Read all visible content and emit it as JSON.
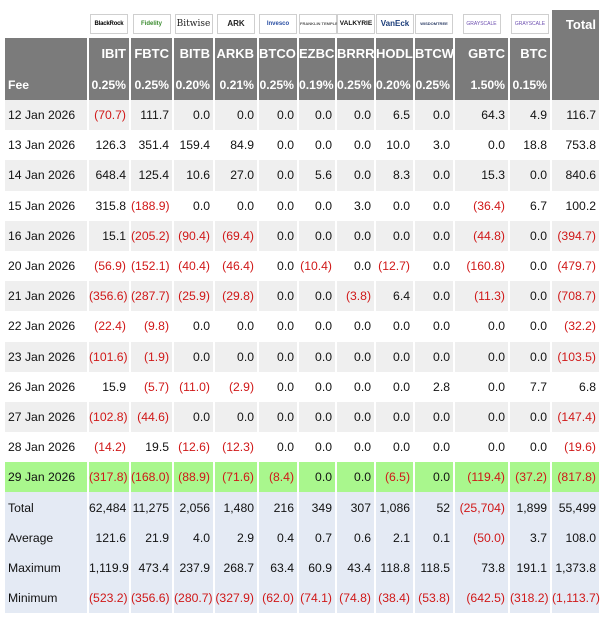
{
  "logos": [
    {
      "text": "BlackRock",
      "icon": "blackrock-logo"
    },
    {
      "text": "Fidelity",
      "icon": "fidelity-logo"
    },
    {
      "text": "Bitwise",
      "icon": "bitwise-logo"
    },
    {
      "text": "ARK",
      "icon": "ark-logo"
    },
    {
      "text": "Invesco",
      "icon": "invesco-logo"
    },
    {
      "text": "FRANKLIN TEMPLETON",
      "icon": "franklin-logo"
    },
    {
      "text": "VALKYRIE",
      "icon": "valkyrie-logo"
    },
    {
      "text": "VanEck",
      "icon": "vaneck-logo"
    },
    {
      "text": "WISDOMTREE",
      "icon": "wisdomtree-logo"
    },
    {
      "text": "GRAYSCALE",
      "icon": "grayscale-logo"
    },
    {
      "text": "GRAYSCALE",
      "icon": "grayscale-logo"
    }
  ],
  "total_header": "Total",
  "tickers": [
    "IBIT",
    "FBTC",
    "BITB",
    "ARKB",
    "BTCO",
    "EZBC",
    "BRRR",
    "HODL",
    "BTCW",
    "GBTC",
    "BTC"
  ],
  "fee_label": "Fee",
  "fees": [
    "0.25%",
    "0.25%",
    "0.20%",
    "0.21%",
    "0.25%",
    "0.19%",
    "0.25%",
    "0.20%",
    "0.25%",
    "1.50%",
    "0.15%"
  ],
  "rows": [
    {
      "date": "12 Jan 2026",
      "cells": [
        "(70.7)",
        "111.7",
        "0.0",
        "0.0",
        "0.0",
        "0.0",
        "0.0",
        "6.5",
        "0.0",
        "64.3",
        "4.9"
      ],
      "total": "116.7"
    },
    {
      "date": "13 Jan 2026",
      "cells": [
        "126.3",
        "351.4",
        "159.4",
        "84.9",
        "0.0",
        "0.0",
        "0.0",
        "10.0",
        "3.0",
        "0.0",
        "18.8"
      ],
      "total": "753.8"
    },
    {
      "date": "14 Jan 2026",
      "cells": [
        "648.4",
        "125.4",
        "10.6",
        "27.0",
        "0.0",
        "5.6",
        "0.0",
        "8.3",
        "0.0",
        "15.3",
        "0.0"
      ],
      "total": "840.6"
    },
    {
      "date": "15 Jan 2026",
      "cells": [
        "315.8",
        "(188.9)",
        "0.0",
        "0.0",
        "0.0",
        "0.0",
        "3.0",
        "0.0",
        "0.0",
        "(36.4)",
        "6.7"
      ],
      "total": "100.2"
    },
    {
      "date": "16 Jan 2026",
      "cells": [
        "15.1",
        "(205.2)",
        "(90.4)",
        "(69.4)",
        "0.0",
        "0.0",
        "0.0",
        "0.0",
        "0.0",
        "(44.8)",
        "0.0"
      ],
      "total": "(394.7)"
    },
    {
      "date": "20 Jan 2026",
      "cells": [
        "(56.9)",
        "(152.1)",
        "(40.4)",
        "(46.4)",
        "0.0",
        "(10.4)",
        "0.0",
        "(12.7)",
        "0.0",
        "(160.8)",
        "0.0"
      ],
      "total": "(479.7)"
    },
    {
      "date": "21 Jan 2026",
      "cells": [
        "(356.6)",
        "(287.7)",
        "(25.9)",
        "(29.8)",
        "0.0",
        "0.0",
        "(3.8)",
        "6.4",
        "0.0",
        "(11.3)",
        "0.0"
      ],
      "total": "(708.7)"
    },
    {
      "date": "22 Jan 2026",
      "cells": [
        "(22.4)",
        "(9.8)",
        "0.0",
        "0.0",
        "0.0",
        "0.0",
        "0.0",
        "0.0",
        "0.0",
        "0.0",
        "0.0"
      ],
      "total": "(32.2)"
    },
    {
      "date": "23 Jan 2026",
      "cells": [
        "(101.6)",
        "(1.9)",
        "0.0",
        "0.0",
        "0.0",
        "0.0",
        "0.0",
        "0.0",
        "0.0",
        "0.0",
        "0.0"
      ],
      "total": "(103.5)"
    },
    {
      "date": "26 Jan 2026",
      "cells": [
        "15.9",
        "(5.7)",
        "(11.0)",
        "(2.9)",
        "0.0",
        "0.0",
        "0.0",
        "0.0",
        "2.8",
        "0.0",
        "7.7"
      ],
      "total": "6.8"
    },
    {
      "date": "27 Jan 2026",
      "cells": [
        "(102.8)",
        "(44.6)",
        "0.0",
        "0.0",
        "0.0",
        "0.0",
        "0.0",
        "0.0",
        "0.0",
        "0.0",
        "0.0"
      ],
      "total": "(147.4)"
    },
    {
      "date": "28 Jan 2026",
      "cells": [
        "(14.2)",
        "19.5",
        "(12.6)",
        "(12.3)",
        "0.0",
        "0.0",
        "0.0",
        "0.0",
        "0.0",
        "0.0",
        "0.0"
      ],
      "total": "(19.6)"
    },
    {
      "date": "29 Jan 2026",
      "cells": [
        "(317.8)",
        "(168.0)",
        "(88.9)",
        "(71.6)",
        "(8.4)",
        "0.0",
        "0.0",
        "(6.5)",
        "0.0",
        "(119.4)",
        "(37.2)"
      ],
      "total": "(817.8)"
    }
  ],
  "stats": [
    {
      "label": "Total",
      "cells": [
        "62,484",
        "11,275",
        "2,056",
        "1,480",
        "216",
        "349",
        "307",
        "1,086",
        "52",
        "(25,704)",
        "1,899"
      ],
      "total": "55,499"
    },
    {
      "label": "Average",
      "cells": [
        "121.6",
        "21.9",
        "4.0",
        "2.9",
        "0.4",
        "0.7",
        "0.6",
        "2.1",
        "0.1",
        "(50.0)",
        "3.7"
      ],
      "total": "108.0"
    },
    {
      "label": "Maximum",
      "cells": [
        "1,119.9",
        "473.4",
        "237.9",
        "268.7",
        "63.4",
        "60.9",
        "43.4",
        "118.8",
        "118.5",
        "73.8",
        "191.1"
      ],
      "total": "1,373.8"
    },
    {
      "label": "Minimum",
      "cells": [
        "(523.2)",
        "(356.6)",
        "(280.7)",
        "(327.9)",
        "(62.0)",
        "(74.1)",
        "(74.8)",
        "(38.4)",
        "(53.8)",
        "(642.5)",
        "(318.2)"
      ],
      "total": "(1,113.7)"
    }
  ],
  "colors": {
    "header_bg": "#7b7b7b",
    "negative": "#d01818",
    "highlight_row": "#a9f78d",
    "stats_bg": "#e4eaf4",
    "alt_row": "#efefef"
  }
}
